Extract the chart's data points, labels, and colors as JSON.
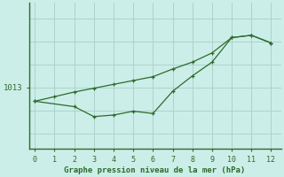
{
  "title": "Graphe pression niveau de la mer (hPa)",
  "bg_color": "#cceee8",
  "line_color": "#2d6a2d",
  "grid_color": "#aad4cc",
  "ytick_value": 1013,
  "ylim": [
    1005,
    1024
  ],
  "xlim": [
    -0.3,
    12.5
  ],
  "xticks": [
    0,
    1,
    2,
    3,
    4,
    5,
    6,
    7,
    8,
    9,
    10,
    11,
    12
  ],
  "series1_x": [
    0,
    1,
    2,
    3,
    4,
    5,
    6,
    7,
    8,
    9,
    10,
    11,
    12
  ],
  "series1_y": [
    1011.2,
    1011.8,
    1012.4,
    1012.9,
    1013.4,
    1013.9,
    1014.4,
    1015.4,
    1016.3,
    1017.5,
    1019.5,
    1019.8,
    1018.8
  ],
  "series2_x": [
    0,
    2,
    3,
    4,
    5,
    6,
    7,
    8,
    9,
    10,
    11,
    12
  ],
  "series2_y": [
    1011.2,
    1010.5,
    1009.2,
    1009.4,
    1009.9,
    1009.6,
    1012.5,
    1014.5,
    1016.3,
    1019.5,
    1019.8,
    1018.8
  ],
  "ytick_grid_values": [
    1007,
    1010,
    1013,
    1016,
    1019,
    1022
  ],
  "figsize": [
    3.2,
    2.0
  ],
  "dpi": 100
}
